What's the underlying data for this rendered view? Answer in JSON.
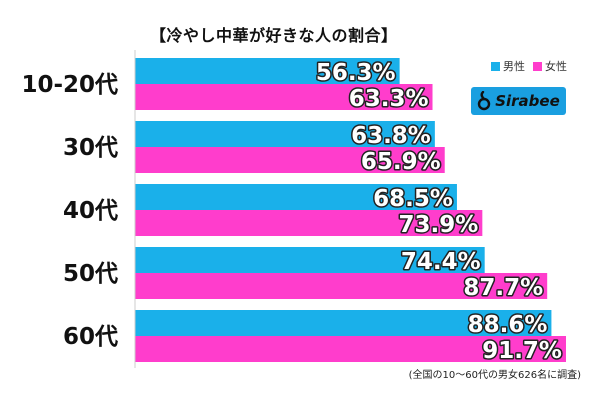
{
  "chart_data": {
    "type": "bar",
    "orientation": "horizontal",
    "title": "【冷やし中華が好きな人の割合】",
    "categories": [
      "10-20代",
      "30代",
      "40代",
      "50代",
      "60代"
    ],
    "series": [
      {
        "name": "男性",
        "color": "#1ab0ea",
        "values": [
          56.3,
          63.8,
          68.5,
          74.4,
          88.6
        ],
        "labels": [
          "56.3%",
          "63.8%",
          "68.5%",
          "74.4%",
          "88.6%"
        ]
      },
      {
        "name": "女性",
        "color": "#ff3dcc",
        "values": [
          63.3,
          65.9,
          73.9,
          87.7,
          91.7
        ],
        "labels": [
          "63.3%",
          "65.9%",
          "73.9%",
          "87.7%",
          "91.7%"
        ]
      }
    ],
    "xlim": [
      0,
      100
    ],
    "legend_position": "top-right",
    "grid": false
  },
  "brand": {
    "name": "Sirabee",
    "color": "#1a9fe0"
  },
  "footnote": "(全国の10〜60代の男女626名に調査)"
}
